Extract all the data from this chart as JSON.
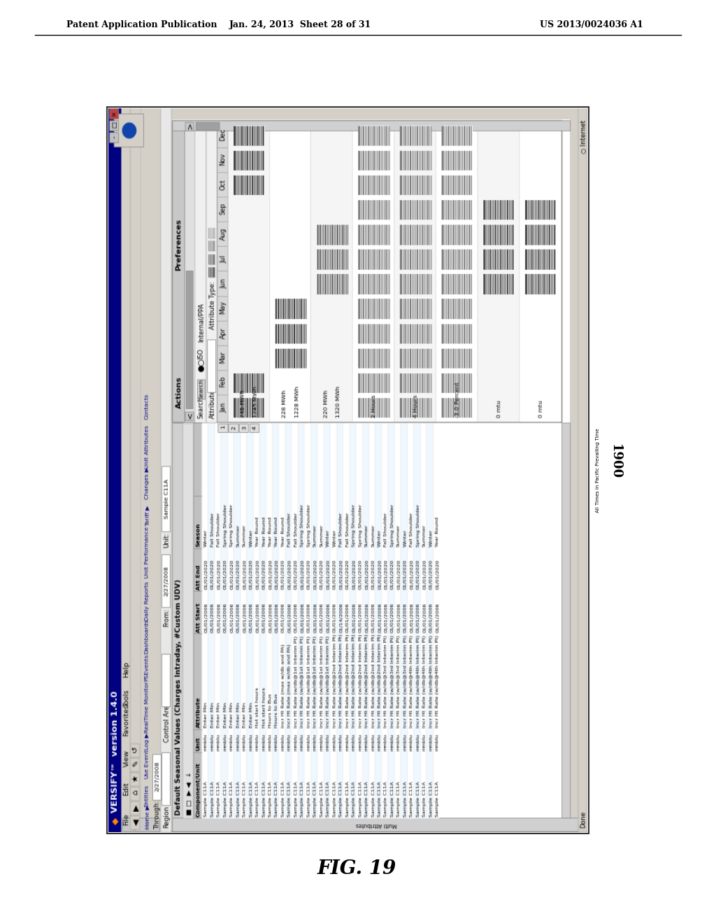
{
  "page_title_left": "Patent Application Publication",
  "page_title_center": "Jan. 24, 2013  Sheet 28 of 31",
  "page_title_right": "US 2013/0024036 A1",
  "figure_label": "FIG. 19",
  "figure_number": "1900",
  "background_color": "#ffffff"
}
